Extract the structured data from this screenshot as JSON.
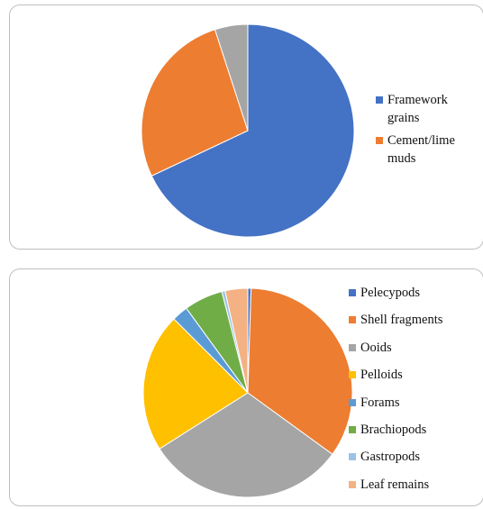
{
  "chart_data": [
    {
      "type": "pie",
      "title": "",
      "slices": [
        {
          "label": "Framework grains",
          "value": 68,
          "color": "#4472C4"
        },
        {
          "label": "Cement/lime muds",
          "value": 27,
          "color": "#ED7D31"
        },
        {
          "label": "",
          "value": 5,
          "color": "#A5A5A5"
        }
      ],
      "legend": {
        "position": "right",
        "entries": [
          "Framework grains",
          "Cement/lime muds"
        ]
      }
    },
    {
      "type": "pie",
      "title": "",
      "slices": [
        {
          "label": "Pelecypods",
          "value": 0.5,
          "color": "#4472C4"
        },
        {
          "label": "Shell fragments",
          "value": 34.5,
          "color": "#ED7D31"
        },
        {
          "label": "Ooids",
          "value": 31,
          "color": "#A5A5A5"
        },
        {
          "label": "Pelloids",
          "value": 21.5,
          "color": "#FFC000"
        },
        {
          "label": "Forams",
          "value": 2.5,
          "color": "#5B9BD5"
        },
        {
          "label": "Brachiopods",
          "value": 6,
          "color": "#70AD47"
        },
        {
          "label": "Gastropods",
          "value": 0.5,
          "color": "#9DC3E6"
        },
        {
          "label": "Leaf remains",
          "value": 3.5,
          "color": "#F4B183"
        }
      ],
      "legend": {
        "position": "right",
        "entries": [
          "Pelecypods",
          "Shell fragments",
          "Ooids",
          "Pelloids",
          "Forams",
          "Brachiopods",
          "Gastropods",
          "Leaf remains"
        ]
      }
    }
  ]
}
